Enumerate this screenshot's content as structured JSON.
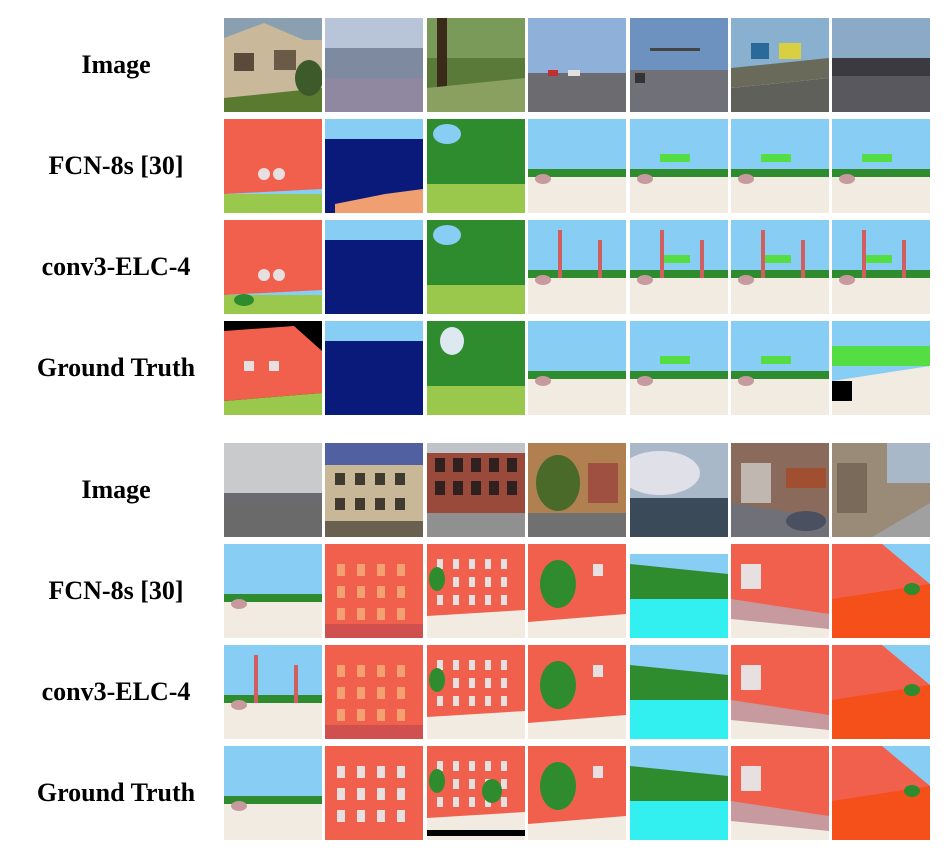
{
  "figure": {
    "blocks": [
      {
        "rows": [
          {
            "label": "Image",
            "kind": "image"
          },
          {
            "label": "FCN-8s [30]",
            "kind": "seg"
          },
          {
            "label": "conv3-ELC-4",
            "kind": "seg"
          },
          {
            "label": "Ground Truth",
            "kind": "seg"
          }
        ],
        "scenes": [
          "house",
          "sea",
          "forest",
          "highway",
          "highway-sign",
          "highway-overpass-sign",
          "overpass"
        ]
      },
      {
        "rows": [
          {
            "label": "Image",
            "kind": "image"
          },
          {
            "label": "FCN-8s [30]",
            "kind": "seg"
          },
          {
            "label": "conv3-ELC-4",
            "kind": "seg"
          },
          {
            "label": "Ground Truth",
            "kind": "seg"
          }
        ],
        "scenes": [
          "open-road",
          "building-facade",
          "street-buildings",
          "street-tree",
          "river-winter",
          "street-cars",
          "sidewalk-street"
        ]
      }
    ],
    "class_colors": {
      "sky": "#87cdf4",
      "building": "#f0604d",
      "grass": "#9ac84d",
      "tree": "#2e8b2e",
      "water": "#0a1a7a",
      "sand": "#f0a070",
      "road": "#f2ebe1",
      "car": "#c79aa0",
      "pole": "#d06060",
      "sign": "#55dd44",
      "window": "#e8e0e0",
      "river": "#33f0f0",
      "unlabeled": "#000000",
      "sidewalk": "#f5501a"
    }
  }
}
